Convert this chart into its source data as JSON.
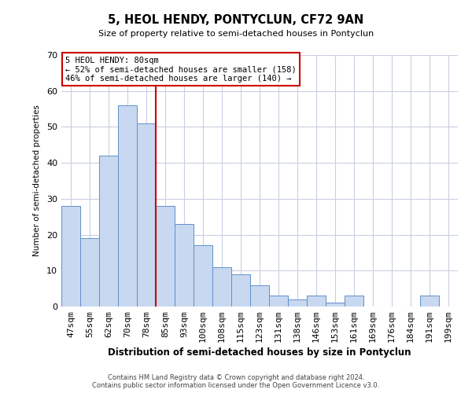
{
  "title": "5, HEOL HENDY, PONTYCLUN, CF72 9AN",
  "subtitle": "Size of property relative to semi-detached houses in Pontyclun",
  "xlabel": "Distribution of semi-detached houses by size in Pontyclun",
  "ylabel": "Number of semi-detached properties",
  "categories": [
    "47sqm",
    "55sqm",
    "62sqm",
    "70sqm",
    "78sqm",
    "85sqm",
    "93sqm",
    "100sqm",
    "108sqm",
    "115sqm",
    "123sqm",
    "131sqm",
    "138sqm",
    "146sqm",
    "153sqm",
    "161sqm",
    "169sqm",
    "176sqm",
    "184sqm",
    "191sqm",
    "199sqm"
  ],
  "values": [
    28,
    19,
    42,
    56,
    51,
    28,
    23,
    17,
    11,
    9,
    6,
    3,
    2,
    3,
    1,
    3,
    0,
    0,
    0,
    3,
    0
  ],
  "bar_color": "#c8d8f0",
  "bar_edgecolor": "#6090c8",
  "background_color": "#ffffff",
  "grid_color": "#c8cfe0",
  "vline_color": "#cc0000",
  "annotation_title": "5 HEOL HENDY: 80sqm",
  "annotation_line1": "← 52% of semi-detached houses are smaller (158)",
  "annotation_line2": "46% of semi-detached houses are larger (140) →",
  "annotation_box_edgecolor": "#cc0000",
  "ylim": [
    0,
    70
  ],
  "yticks": [
    0,
    10,
    20,
    30,
    40,
    50,
    60,
    70
  ],
  "footer1": "Contains HM Land Registry data © Crown copyright and database right 2024.",
  "footer2": "Contains public sector information licensed under the Open Government Licence v3.0."
}
